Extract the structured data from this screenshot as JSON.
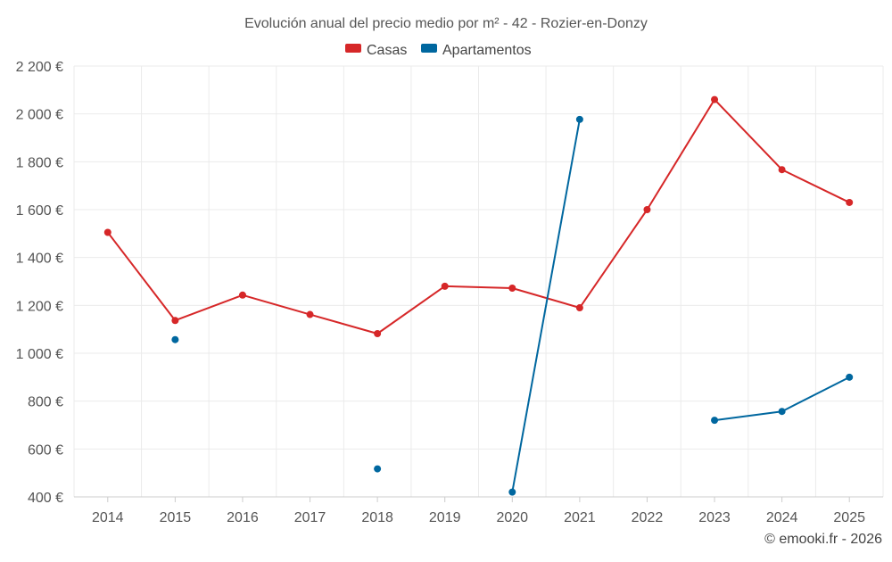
{
  "chart_data": {
    "type": "line",
    "title": "Evolución anual del precio medio por m² - 42 - Rozier-en-Donzy",
    "xlabel": "",
    "ylabel": "",
    "categories": [
      "2014",
      "2015",
      "2016",
      "2017",
      "2018",
      "2019",
      "2020",
      "2021",
      "2022",
      "2023",
      "2024",
      "2025"
    ],
    "ylim": [
      400,
      2200
    ],
    "yticks": [
      400,
      600,
      800,
      1000,
      1200,
      1400,
      1600,
      1800,
      2000,
      2200
    ],
    "ytick_labels": [
      "400 €",
      "600 €",
      "800 €",
      "1 000 €",
      "1 200 €",
      "1 400 €",
      "1 600 €",
      "1 800 €",
      "2 000 €",
      "2 200 €"
    ],
    "grid": true,
    "legend_position": "top-center",
    "series": [
      {
        "name": "Casas",
        "color": "#d62728",
        "values": [
          1505,
          1137,
          1243,
          1162,
          1082,
          1280,
          1272,
          1190,
          1600,
          2060,
          1767,
          1630
        ]
      },
      {
        "name": "Apartamentos",
        "color": "#00679f",
        "values": [
          null,
          1057,
          null,
          null,
          517,
          null,
          420,
          1977,
          null,
          720,
          757,
          900
        ]
      }
    ]
  },
  "credit": "© emooki.fr - 2026"
}
